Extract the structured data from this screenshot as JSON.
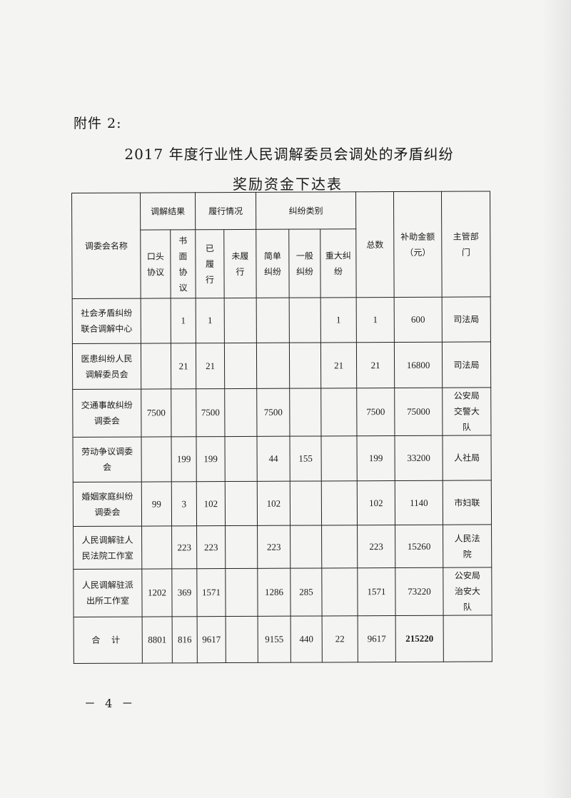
{
  "attachment_label": "附件 2:",
  "title_line1": "2017 年度行业性人民调解委员会调处的矛盾纠纷",
  "title_line2": "奖励资金下达表",
  "headers": {
    "name": "调委会名称",
    "group_result": "调解结果",
    "group_perform": "履行情况",
    "group_type": "纠纷类别",
    "total": "总数",
    "subsidy": "补助金额（元）",
    "dept": "主管部门",
    "sub": [
      "口头协议",
      "书面协议",
      "已履行",
      "未履行",
      "简单纠纷",
      "一般纠纷",
      "重大纠纷"
    ]
  },
  "rows": [
    {
      "name": "社会矛盾纠纷联合调解中心",
      "cells": [
        "",
        "1",
        "1",
        "",
        "",
        "",
        "1",
        "1",
        "600"
      ],
      "dept": "司法局"
    },
    {
      "name": "医患纠纷人民调解委员会",
      "cells": [
        "",
        "21",
        "21",
        "",
        "",
        "",
        "21",
        "21",
        "16800"
      ],
      "dept": "司法局"
    },
    {
      "name": "交通事故纠纷调委会",
      "cells": [
        "7500",
        "",
        "7500",
        "",
        "7500",
        "",
        "",
        "7500",
        "75000"
      ],
      "dept": "公安局交警大队"
    },
    {
      "name": "劳动争议调委会",
      "cells": [
        "",
        "199",
        "199",
        "",
        "44",
        "155",
        "",
        "199",
        "33200"
      ],
      "dept": "人社局"
    },
    {
      "name": "婚姻家庭纠纷调委会",
      "cells": [
        "99",
        "3",
        "102",
        "",
        "102",
        "",
        "",
        "102",
        "1140"
      ],
      "dept": "市妇联"
    },
    {
      "name": "人民调解驻人民法院工作室",
      "cells": [
        "",
        "223",
        "223",
        "",
        "223",
        "",
        "",
        "223",
        "15260"
      ],
      "dept": "人民法院"
    },
    {
      "name": "人民调解驻派出所工作室",
      "cells": [
        "1202",
        "369",
        "1571",
        "",
        "1286",
        "285",
        "",
        "1571",
        "73220"
      ],
      "dept": "公安局治安大队"
    }
  ],
  "total_row": {
    "name": "合 计",
    "cells": [
      "8801",
      "816",
      "9617",
      "",
      "9155",
      "440",
      "22",
      "9617",
      "215220"
    ],
    "dept": ""
  },
  "page_number": "－ 4 －"
}
